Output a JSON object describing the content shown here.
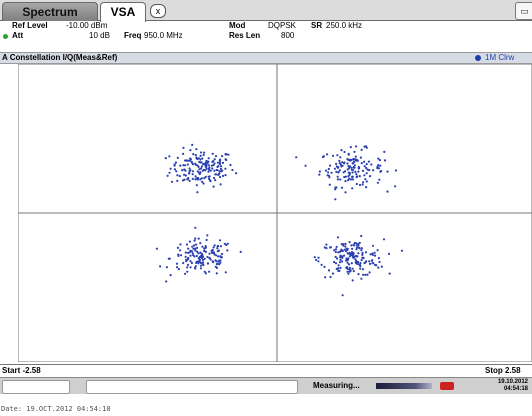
{
  "tabs": {
    "spectrum": "Spectrum",
    "vsa": "VSA",
    "close": "x"
  },
  "corner_icon": "windows-icon",
  "info": {
    "ref_level_label": "Ref Level",
    "ref_level_value": "-10.00 dBm",
    "att_label": "Att",
    "att_value": "10 dB",
    "freq_label": "Freq",
    "freq_value": "950.0 MHz",
    "mod_label": "Mod",
    "mod_value": "DQPSK",
    "sr_label": "SR",
    "sr_value": "250.0 kHz",
    "reslen_label": "Res Len",
    "reslen_value": "800"
  },
  "window": {
    "title": "A Constellation I/Q(Meas&Ref)",
    "trace_label": "1M Clrw",
    "trace_color": "#1f3fa8"
  },
  "scale": {
    "start": "Start -2.58",
    "stop": "Stop 2.58"
  },
  "status": {
    "measuring": "Measuring...",
    "date": "19.10.2012",
    "time": "04:54:18"
  },
  "footer": {
    "date_line": "Date: 19.OCT.2012  04:54:18"
  },
  "chart_data": {
    "type": "scatter",
    "title": "A Constellation I/Q(Meas&Ref)",
    "xlim": [
      -2.58,
      2.58
    ],
    "ylim": [
      -2.58,
      2.58
    ],
    "grid": true,
    "point_color": "#2a3fb0",
    "clusters": [
      {
        "center": [
          -0.75,
          0.78
        ],
        "spread": 0.16,
        "points": 170
      },
      {
        "center": [
          0.75,
          0.78
        ],
        "spread": 0.16,
        "points": 150
      },
      {
        "center": [
          -0.75,
          -0.78
        ],
        "spread": 0.16,
        "points": 150
      },
      {
        "center": [
          0.75,
          -0.78
        ],
        "spread": 0.16,
        "points": 170
      }
    ]
  }
}
